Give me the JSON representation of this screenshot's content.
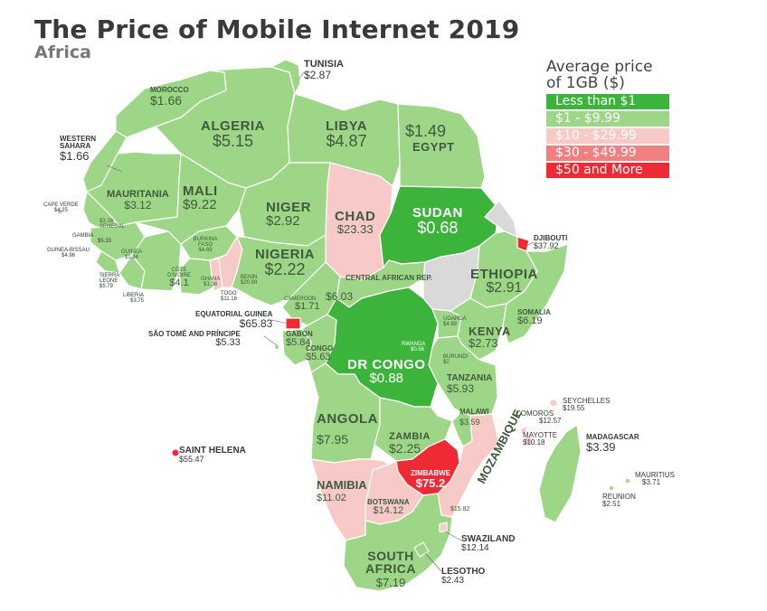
{
  "title": "The Price of Mobile Internet 2019",
  "subtitle": "Africa",
  "legend": {
    "title_line1": "Average price",
    "title_line2": "of 1GB ($)",
    "items": [
      {
        "label": "Less than $1",
        "color": "#3cb43c"
      },
      {
        "label": "$1 - $9.99",
        "color": "#9ed688"
      },
      {
        "label": "$10 - $29.99",
        "color": "#f7c9c7"
      },
      {
        "label": "$30 - $49.99",
        "color": "#f08080"
      },
      {
        "label": "$50 and More",
        "color": "#ee2a35"
      }
    ]
  },
  "colors": {
    "green_dark": "#3cb43c",
    "green_light": "#9ed688",
    "pink": "#f7c9c7",
    "red": "#ee2a35",
    "no_data": "#d9d9d9"
  },
  "countries": [
    {
      "name": "TUNISIA",
      "price": "$2.87"
    },
    {
      "name": "MOROCCO",
      "price": "$1.66"
    },
    {
      "name": "ALGERIA",
      "price": "$5.15"
    },
    {
      "name": "LIBYA",
      "price": "$4.87"
    },
    {
      "name": "EGYPT",
      "price": "$1.49"
    },
    {
      "name": "WESTERN SAHARA",
      "price": "$1.66"
    },
    {
      "name": "MAURITANIA",
      "price": "$3.12"
    },
    {
      "name": "MALI",
      "price": "$9.22"
    },
    {
      "name": "NIGER",
      "price": "$2.92"
    },
    {
      "name": "CHAD",
      "price": "$23.33"
    },
    {
      "name": "SUDAN",
      "price": "$0.68"
    },
    {
      "name": "DJIBOUTI",
      "price": "$37.92"
    },
    {
      "name": "CAPE VERDE",
      "price": "$4.25"
    },
    {
      "name": "SENEGAL",
      "price": "$3.28"
    },
    {
      "name": "GAMBIA",
      "price": "$5.33"
    },
    {
      "name": "GUINEA-BISSAU",
      "price": "$4.96"
    },
    {
      "name": "GUINEA",
      "price": "$1.94"
    },
    {
      "name": "BURKINA FASO",
      "price": "$4.69"
    },
    {
      "name": "NIGERIA",
      "price": "$2.22"
    },
    {
      "name": "SIERRA LEONE",
      "price": "$5.79"
    },
    {
      "name": "CÔTE D'IVOIRE",
      "price": "$4.1"
    },
    {
      "name": "GHANA",
      "price": "$1.36"
    },
    {
      "name": "BENIN",
      "price": "$20.99"
    },
    {
      "name": "LIBERIA",
      "price": "$3.75"
    },
    {
      "name": "TOGO",
      "price": "$11.16"
    },
    {
      "name": "CENTRAL AFRICAN REP.",
      "price": "$6.03"
    },
    {
      "name": "ETHIOPIA",
      "price": "$2.91"
    },
    {
      "name": "CAMEROON",
      "price": "$1.71"
    },
    {
      "name": "SOMALIA",
      "price": "$6.19"
    },
    {
      "name": "EQUATORIAL GUINEA",
      "price": "$65.83"
    },
    {
      "name": "SÃO TOMÉ AND PRÍNCIPE",
      "price": "$5.33"
    },
    {
      "name": "GABON",
      "price": "$5.84"
    },
    {
      "name": "UGANDA",
      "price": "$4.69"
    },
    {
      "name": "KENYA",
      "price": "$2.73"
    },
    {
      "name": "CONGO",
      "price": "$5.63"
    },
    {
      "name": "RWANDA",
      "price": "$0.56"
    },
    {
      "name": "DR CONGO",
      "price": "$0.88"
    },
    {
      "name": "BURUNDI",
      "price": "$2"
    },
    {
      "name": "TANZANIA",
      "price": "$5.93"
    },
    {
      "name": "SEYCHELLES",
      "price": "$19.55"
    },
    {
      "name": "COMOROS",
      "price": "$12.57"
    },
    {
      "name": "MALAWI",
      "price": "$3.59"
    },
    {
      "name": "MAYOTTE",
      "price": "$10.18"
    },
    {
      "name": "ANGOLA",
      "price": "$7.95"
    },
    {
      "name": "ZAMBIA",
      "price": "$2.25"
    },
    {
      "name": "MADAGASCAR",
      "price": "$3.39"
    },
    {
      "name": "SAINT HELENA",
      "price": "$55.47"
    },
    {
      "name": "ZIMBABWE",
      "price": "$75.2"
    },
    {
      "name": "MOZAMBIQUE",
      "price": "$15.82"
    },
    {
      "name": "MAURITIUS",
      "price": "$3.71"
    },
    {
      "name": "NAMIBIA",
      "price": "$11.02"
    },
    {
      "name": "REUNION",
      "price": "$2.51"
    },
    {
      "name": "BOTSWANA",
      "price": "$14.12"
    },
    {
      "name": "SWAZILAND",
      "price": "$12.14"
    },
    {
      "name": "SOUTH AFRICA",
      "price": "$7.19"
    },
    {
      "name": "LESOTHO",
      "price": "$2.43"
    }
  ]
}
